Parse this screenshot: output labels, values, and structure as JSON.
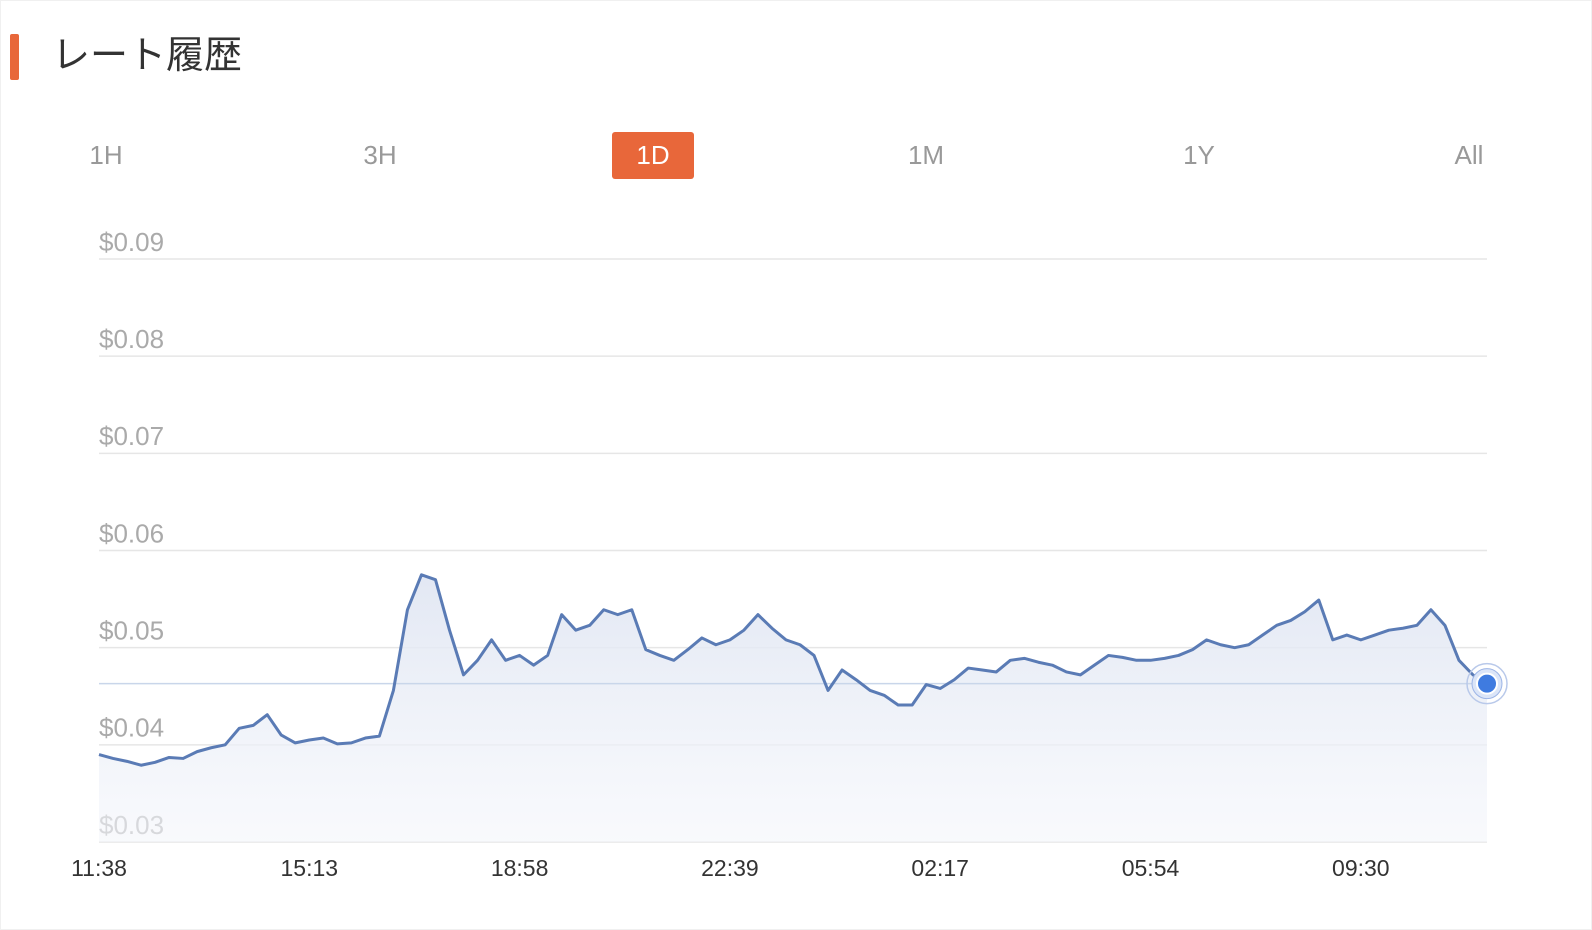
{
  "header": {
    "title": "レート履歴"
  },
  "tabs": {
    "items": [
      "1H",
      "3H",
      "1D",
      "1M",
      "1Y",
      "All"
    ],
    "active": 2
  },
  "chart_data": {
    "type": "line",
    "x": [
      "11:38",
      null,
      null,
      null,
      null,
      null,
      null,
      null,
      null,
      null,
      null,
      null,
      null,
      null,
      null,
      "15:13",
      null,
      null,
      null,
      null,
      null,
      null,
      null,
      null,
      null,
      null,
      null,
      null,
      null,
      null,
      "18:58",
      null,
      null,
      null,
      null,
      null,
      null,
      null,
      null,
      null,
      null,
      null,
      null,
      null,
      null,
      "22:39",
      null,
      null,
      null,
      null,
      null,
      null,
      null,
      null,
      null,
      null,
      null,
      null,
      null,
      null,
      "02:17",
      null,
      null,
      null,
      null,
      null,
      null,
      null,
      null,
      null,
      null,
      null,
      null,
      null,
      null,
      "05:54",
      null,
      null,
      null,
      null,
      null,
      null,
      null,
      null,
      null,
      null,
      null,
      null,
      null,
      null,
      "09:30",
      null,
      null,
      null,
      null,
      null,
      null,
      null,
      null,
      null
    ],
    "values": [
      0.039,
      0.0386,
      0.0383,
      0.0379,
      0.0382,
      0.0387,
      0.0386,
      0.0393,
      0.0397,
      0.04,
      0.0417,
      0.042,
      0.0431,
      0.041,
      0.0402,
      0.0405,
      0.0407,
      0.0401,
      0.0402,
      0.0407,
      0.0409,
      0.0456,
      0.0539,
      0.0575,
      0.057,
      0.0518,
      0.0472,
      0.0487,
      0.0508,
      0.0487,
      0.0492,
      0.0482,
      0.0492,
      0.0534,
      0.0518,
      0.0523,
      0.0539,
      0.0534,
      0.0539,
      0.0498,
      0.0492,
      0.0487,
      0.0498,
      0.051,
      0.0503,
      0.0508,
      0.0518,
      0.0534,
      0.052,
      0.0508,
      0.0503,
      0.0492,
      0.0456,
      0.0477,
      0.0467,
      0.0456,
      0.0451,
      0.0441,
      0.0441,
      0.0462,
      0.0458,
      0.0467,
      0.0479,
      0.0477,
      0.0475,
      0.0487,
      0.0489,
      0.0485,
      0.0482,
      0.0475,
      0.0472,
      0.0482,
      0.0492,
      0.049,
      0.0487,
      0.0487,
      0.0489,
      0.0492,
      0.0498,
      0.0508,
      0.0503,
      0.05,
      0.0503,
      0.0513,
      0.0523,
      0.0528,
      0.0537,
      0.0549,
      0.0508,
      0.0513,
      0.0508,
      0.0513,
      0.0518,
      0.052,
      0.0523,
      0.0539,
      0.0523,
      0.0487,
      0.0472,
      0.0463
    ],
    "color": "#5a7bb5",
    "ylim": [
      0.03,
      0.09
    ],
    "yticks": [
      {
        "value": 0.03,
        "label": "$0.03"
      },
      {
        "value": 0.04,
        "label": "$0.04"
      },
      {
        "value": 0.05,
        "label": "$0.05"
      },
      {
        "value": 0.06,
        "label": "$0.06"
      },
      {
        "value": 0.07,
        "label": "$0.07"
      },
      {
        "value": 0.08,
        "label": "$0.08"
      },
      {
        "value": 0.09,
        "label": "$0.09"
      }
    ],
    "grid": true
  }
}
